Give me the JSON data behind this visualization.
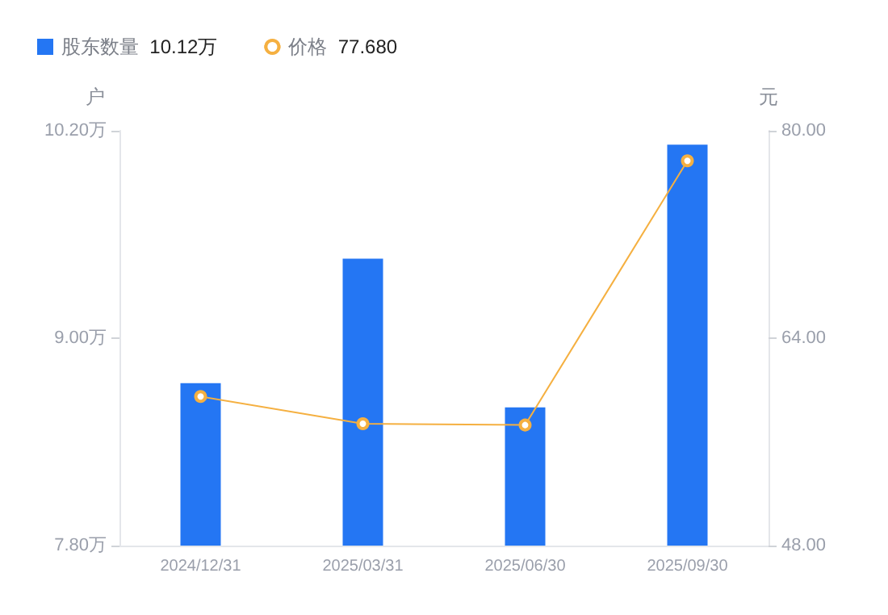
{
  "chart_data": {
    "type": "bar",
    "categories": [
      "2024/12/31",
      "2025/03/31",
      "2025/06/30",
      "2025/09/30"
    ],
    "ylabel": "户",
    "y2label": "元",
    "series": [
      {
        "name": "股东数量",
        "color": "#2476f3",
        "values": [
          8.74,
          9.46,
          8.6,
          10.12
        ]
      },
      {
        "name": "价格",
        "type": "line",
        "axis": "y2",
        "color": "#f5b041",
        "values": [
          59.5,
          57.4,
          57.3,
          77.68
        ]
      }
    ],
    "ylim": [
      7.8,
      10.2
    ],
    "yticks": [
      {
        "value": 7.8,
        "label": "7.80万"
      },
      {
        "value": 9.0,
        "label": "9.00万"
      },
      {
        "value": 10.2,
        "label": "10.20万"
      }
    ],
    "y2lim": [
      48,
      80
    ],
    "y2ticks": [
      {
        "value": 48,
        "label": "48.00"
      },
      {
        "value": 64,
        "label": "64.00"
      },
      {
        "value": 80,
        "label": "80.00"
      }
    ],
    "annotations": [
      "10.12万",
      "77.680"
    ],
    "legend": "top left",
    "marker": "circle",
    "grid": false
  }
}
